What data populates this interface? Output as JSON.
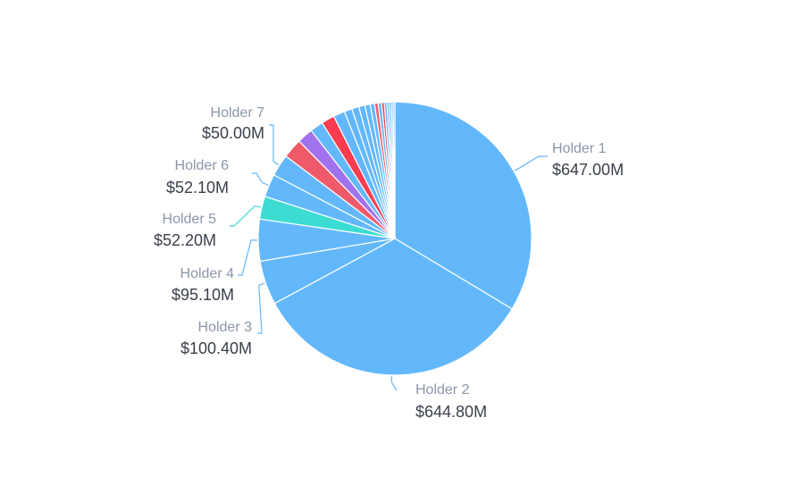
{
  "chart_data": {
    "type": "pie",
    "title": "",
    "start": "top-clockwise",
    "slices": [
      {
        "name": "Holder 1",
        "value": 647.0,
        "value_label": "$647.00M",
        "color": "#63b8fc",
        "labeled": true
      },
      {
        "name": "Holder 2",
        "value": 644.8,
        "value_label": "$644.80M",
        "color": "#63b8fc",
        "labeled": true
      },
      {
        "name": "Holder 3",
        "value": 100.4,
        "value_label": "$100.40M",
        "color": "#63b8fc",
        "labeled": true
      },
      {
        "name": "Holder 4",
        "value": 95.1,
        "value_label": "$95.10M",
        "color": "#63b8fc",
        "labeled": true
      },
      {
        "name": "Holder 5",
        "value": 52.2,
        "value_label": "$52.20M",
        "color": "#3cdcd2",
        "labeled": true
      },
      {
        "name": "Holder 6",
        "value": 52.1,
        "value_label": "$52.10M",
        "color": "#63b8fc",
        "labeled": true
      },
      {
        "name": "Holder 7",
        "value": 50.0,
        "value_label": "$50.00M",
        "color": "#63b8fc",
        "labeled": true
      },
      {
        "value": 45,
        "color": "#ef5a6a",
        "labeled": false
      },
      {
        "value": 36,
        "color": "#a072ee",
        "labeled": false
      },
      {
        "value": 30,
        "color": "#63b8fc",
        "labeled": false
      },
      {
        "value": 30,
        "color": "#fa3c50",
        "labeled": false
      },
      {
        "value": 26,
        "color": "#63b8fc",
        "labeled": false
      },
      {
        "value": 18,
        "color": "#63b8fc",
        "labeled": false
      },
      {
        "value": 16,
        "color": "#63b8fc",
        "labeled": false
      },
      {
        "value": 14,
        "color": "#63b8fc",
        "labeled": false
      },
      {
        "value": 12,
        "color": "#63b8fc",
        "labeled": false
      },
      {
        "value": 10,
        "color": "#63b8fc",
        "labeled": false
      },
      {
        "value": 8,
        "color": "#ef5a6a",
        "labeled": false
      },
      {
        "value": 8,
        "color": "#63b8fc",
        "labeled": false
      },
      {
        "value": 6,
        "color": "#fa3c50",
        "labeled": false
      },
      {
        "value": 6,
        "color": "#63b8fc",
        "labeled": false
      },
      {
        "value": 5,
        "color": "#63b8fc",
        "labeled": false
      },
      {
        "value": 5,
        "color": "#63b8fc",
        "labeled": false
      },
      {
        "value": 4,
        "color": "#63b8fc",
        "labeled": false
      },
      {
        "value": 4,
        "color": "#63b8fc",
        "labeled": false
      }
    ]
  }
}
